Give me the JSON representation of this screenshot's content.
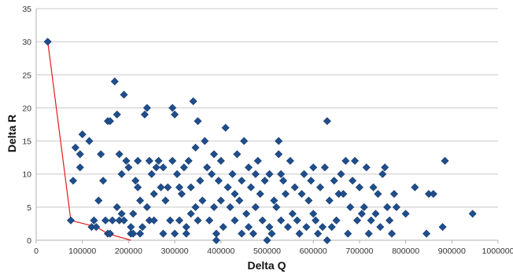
{
  "chart_data": {
    "type": "scatter",
    "title": "",
    "xlabel": "Delta Q",
    "ylabel": "Delta R",
    "xlim": [
      0,
      1000000
    ],
    "ylim": [
      0,
      35
    ],
    "x_ticks": [
      0,
      100000,
      200000,
      300000,
      400000,
      500000,
      600000,
      700000,
      800000,
      900000,
      1000000
    ],
    "y_ticks": [
      0,
      5,
      10,
      15,
      20,
      25,
      30,
      35
    ],
    "grid": "horizontal",
    "legend": "none",
    "marker_color": "#1f4e8c",
    "line_color": "#e31a1c",
    "series": [
      {
        "marker": "diamond",
        "points": [
          [
            25000,
            30
          ],
          [
            75000,
            3
          ],
          [
            80000,
            9
          ],
          [
            85000,
            14
          ],
          [
            95000,
            11
          ],
          [
            95000,
            13
          ],
          [
            100000,
            16
          ],
          [
            115000,
            15
          ],
          [
            120000,
            2
          ],
          [
            125000,
            3
          ],
          [
            130000,
            2
          ],
          [
            135000,
            6
          ],
          [
            140000,
            13
          ],
          [
            145000,
            9
          ],
          [
            150000,
            3
          ],
          [
            155000,
            1
          ],
          [
            155000,
            18
          ],
          [
            160000,
            18
          ],
          [
            160000,
            1
          ],
          [
            165000,
            3
          ],
          [
            170000,
            24
          ],
          [
            175000,
            19
          ],
          [
            175000,
            5
          ],
          [
            180000,
            3
          ],
          [
            180000,
            13
          ],
          [
            185000,
            10
          ],
          [
            185000,
            4
          ],
          [
            190000,
            22
          ],
          [
            190000,
            3
          ],
          [
            195000,
            12
          ],
          [
            200000,
            11
          ],
          [
            205000,
            2
          ],
          [
            205000,
            1
          ],
          [
            210000,
            1
          ],
          [
            210000,
            4
          ],
          [
            215000,
            9
          ],
          [
            220000,
            12
          ],
          [
            220000,
            8
          ],
          [
            225000,
            6
          ],
          [
            225000,
            1
          ],
          [
            230000,
            2
          ],
          [
            235000,
            19
          ],
          [
            240000,
            20
          ],
          [
            240000,
            5
          ],
          [
            245000,
            3
          ],
          [
            245000,
            12
          ],
          [
            250000,
            10
          ],
          [
            255000,
            7
          ],
          [
            255000,
            3
          ],
          [
            260000,
            11
          ],
          [
            265000,
            12
          ],
          [
            270000,
            8
          ],
          [
            275000,
            1
          ],
          [
            275000,
            11
          ],
          [
            280000,
            6
          ],
          [
            285000,
            8
          ],
          [
            290000,
            3
          ],
          [
            295000,
            20
          ],
          [
            295000,
            12
          ],
          [
            300000,
            1
          ],
          [
            300000,
            19
          ],
          [
            305000,
            10
          ],
          [
            310000,
            3
          ],
          [
            310000,
            8
          ],
          [
            315000,
            7
          ],
          [
            320000,
            11
          ],
          [
            325000,
            2
          ],
          [
            325000,
            1
          ],
          [
            330000,
            12
          ],
          [
            335000,
            4
          ],
          [
            335000,
            8
          ],
          [
            340000,
            21
          ],
          [
            345000,
            5
          ],
          [
            345000,
            14
          ],
          [
            350000,
            3
          ],
          [
            350000,
            18
          ],
          [
            355000,
            9
          ],
          [
            360000,
            6
          ],
          [
            365000,
            15
          ],
          [
            370000,
            11
          ],
          [
            375000,
            3
          ],
          [
            380000,
            10
          ],
          [
            385000,
            5
          ],
          [
            385000,
            13
          ],
          [
            390000,
            1
          ],
          [
            390000,
            0
          ],
          [
            395000,
            9
          ],
          [
            400000,
            12
          ],
          [
            400000,
            6
          ],
          [
            405000,
            2
          ],
          [
            410000,
            17
          ],
          [
            415000,
            8
          ],
          [
            420000,
            5
          ],
          [
            425000,
            10
          ],
          [
            430000,
            3
          ],
          [
            430000,
            7
          ],
          [
            435000,
            13
          ],
          [
            440000,
            6
          ],
          [
            445000,
            1
          ],
          [
            445000,
            9
          ],
          [
            450000,
            15
          ],
          [
            455000,
            4
          ],
          [
            460000,
            2
          ],
          [
            460000,
            11
          ],
          [
            465000,
            8
          ],
          [
            470000,
            1
          ],
          [
            475000,
            5
          ],
          [
            475000,
            10
          ],
          [
            480000,
            12
          ],
          [
            485000,
            7
          ],
          [
            490000,
            3
          ],
          [
            495000,
            9
          ],
          [
            500000,
            0
          ],
          [
            505000,
            2
          ],
          [
            505000,
            10
          ],
          [
            510000,
            1
          ],
          [
            515000,
            6
          ],
          [
            520000,
            5
          ],
          [
            525000,
            15
          ],
          [
            525000,
            13
          ],
          [
            530000,
            10
          ],
          [
            530000,
            3
          ],
          [
            535000,
            9
          ],
          [
            540000,
            7
          ],
          [
            545000,
            2
          ],
          [
            550000,
            12
          ],
          [
            555000,
            4
          ],
          [
            560000,
            8
          ],
          [
            565000,
            3
          ],
          [
            570000,
            1
          ],
          [
            575000,
            7
          ],
          [
            580000,
            10
          ],
          [
            585000,
            2
          ],
          [
            590000,
            6
          ],
          [
            595000,
            9
          ],
          [
            600000,
            4
          ],
          [
            600000,
            11
          ],
          [
            605000,
            3
          ],
          [
            610000,
            1
          ],
          [
            615000,
            8
          ],
          [
            620000,
            2
          ],
          [
            625000,
            11
          ],
          [
            630000,
            18
          ],
          [
            630000,
            0
          ],
          [
            635000,
            6
          ],
          [
            640000,
            2
          ],
          [
            645000,
            9
          ],
          [
            650000,
            3
          ],
          [
            655000,
            7
          ],
          [
            660000,
            10
          ],
          [
            665000,
            7
          ],
          [
            670000,
            12
          ],
          [
            675000,
            1
          ],
          [
            680000,
            5
          ],
          [
            685000,
            9
          ],
          [
            690000,
            12
          ],
          [
            695000,
            3
          ],
          [
            700000,
            8
          ],
          [
            705000,
            4
          ],
          [
            710000,
            5
          ],
          [
            715000,
            11
          ],
          [
            720000,
            1
          ],
          [
            725000,
            3
          ],
          [
            730000,
            8
          ],
          [
            735000,
            4
          ],
          [
            740000,
            7
          ],
          [
            745000,
            2
          ],
          [
            750000,
            10
          ],
          [
            755000,
            11
          ],
          [
            760000,
            5
          ],
          [
            765000,
            3
          ],
          [
            770000,
            1
          ],
          [
            775000,
            7
          ],
          [
            780000,
            5
          ],
          [
            800000,
            4
          ],
          [
            820000,
            8
          ],
          [
            845000,
            1
          ],
          [
            850000,
            7
          ],
          [
            860000,
            7
          ],
          [
            880000,
            2
          ],
          [
            885000,
            12
          ],
          [
            945000,
            4
          ]
        ]
      }
    ],
    "frontier_line": [
      [
        25000,
        30
      ],
      [
        75000,
        3
      ],
      [
        130000,
        2
      ],
      [
        155000,
        1
      ],
      [
        205000,
        0
      ]
    ]
  }
}
